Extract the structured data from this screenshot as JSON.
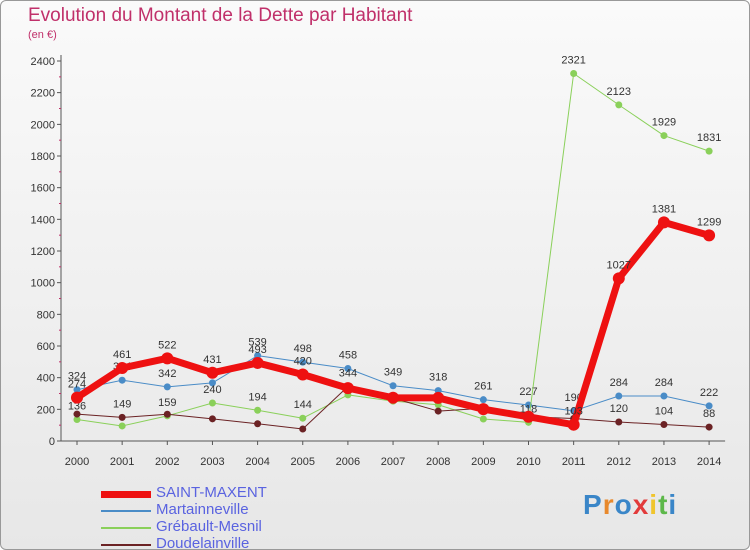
{
  "title": "Evolution du Montant de la Dette par Habitant",
  "subtitle": "(en €)",
  "logo": {
    "letters": [
      "P",
      "r",
      "o",
      "x",
      "i",
      "t",
      "i"
    ],
    "colors": [
      "#3a86c8",
      "#e8892c",
      "#3a86c8",
      "#e23b3b",
      "#f0c52d",
      "#5db84a",
      "#3a86c8"
    ]
  },
  "chart_data": {
    "type": "line",
    "x": [
      "2000",
      "2001",
      "2002",
      "2003",
      "2004",
      "2005",
      "2006",
      "2007",
      "2008",
      "2009",
      "2010",
      "2011",
      "2012",
      "2013",
      "2014"
    ],
    "ylim": [
      0,
      2400
    ],
    "yticks": [
      0,
      200,
      400,
      600,
      800,
      1000,
      1200,
      1400,
      1600,
      1800,
      2000,
      2200,
      2400
    ],
    "grid": false,
    "legend_position": "bottom-left",
    "series": [
      {
        "name": "Martainneville",
        "color": "#4a8cc7",
        "width": 1,
        "marker": 3.5,
        "values": [
          324,
          384,
          342,
          367,
          539,
          498,
          458,
          349,
          318,
          261,
          227,
          190,
          284,
          284,
          222
        ],
        "labels": [
          "324",
          "384",
          "342",
          "",
          "539",
          "498",
          "458",
          "349",
          "318",
          "261",
          "227",
          "190",
          "284",
          "284",
          "222"
        ]
      },
      {
        "name": "Grébault-Mesnil",
        "color": "#8ad05a",
        "width": 1,
        "marker": 3.5,
        "values": [
          136,
          95,
          159,
          240,
          194,
          144,
          291,
          252,
          229,
          139,
          118,
          2321,
          2123,
          1929,
          1831
        ],
        "labels": [
          "136",
          "",
          "159",
          "240",
          "194",
          "144",
          "",
          "",
          "",
          "",
          "118",
          "2321",
          "2123",
          "1929",
          "1831"
        ]
      },
      {
        "name": "Doudelainville",
        "color": "#6b2224",
        "width": 1,
        "marker": 3.5,
        "values": [
          170,
          149,
          169,
          140,
          109,
          76,
          344,
          271,
          189,
          207,
          153,
          142,
          120,
          104,
          88
        ],
        "labels": [
          "",
          "149",
          "",
          "",
          "",
          "",
          "344",
          "",
          "",
          "",
          "",
          "",
          "120",
          "104",
          "88"
        ]
      },
      {
        "name": "SAINT-MAXENT",
        "color": "#ee1111",
        "width": 7,
        "marker": 6,
        "values": [
          274,
          461,
          522,
          431,
          493,
          420,
          334,
          273,
          272,
          201,
          153,
          103,
          1027,
          1381,
          1299
        ],
        "labels": [
          "274",
          "461",
          "522",
          "431",
          "493",
          "420",
          "",
          "",
          "",
          "",
          "",
          "103",
          "1027",
          "1381",
          "1299"
        ]
      }
    ]
  },
  "legend": [
    {
      "label": "SAINT-MAXENT",
      "color": "#ee1111",
      "width": 7
    },
    {
      "label": "Martainneville",
      "color": "#4a8cc7",
      "width": 2
    },
    {
      "label": "Grébault-Mesnil",
      "color": "#8ad05a",
      "width": 2
    },
    {
      "label": "Doudelainville",
      "color": "#6b2224",
      "width": 2
    }
  ]
}
